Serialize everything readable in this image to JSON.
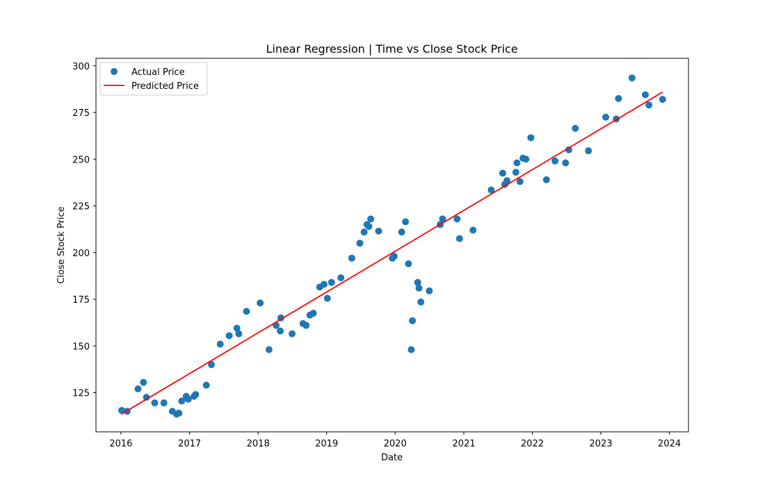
{
  "chart_data": {
    "type": "scatter",
    "title": "Linear Regression | Time vs Close Stock Price",
    "xlabel": "Date",
    "ylabel": "Close Stock Price",
    "xlim": [
      "2015-08-21",
      "2024-04-12"
    ],
    "ylim": [
      104,
      304
    ],
    "x_ticks": [
      "2016",
      "2017",
      "2018",
      "2019",
      "2020",
      "2021",
      "2022",
      "2023",
      "2024"
    ],
    "y_ticks": [
      125,
      150,
      175,
      200,
      225,
      250,
      275,
      300
    ],
    "grid": false,
    "legend_position": "top-left",
    "series": [
      {
        "name": "Actual Price",
        "kind": "scatter",
        "color": "#1f77b4",
        "points": [
          [
            "2016-01-05",
            115.5
          ],
          [
            "2016-02-03",
            115
          ],
          [
            "2016-04-01",
            127
          ],
          [
            "2016-04-30",
            130.5
          ],
          [
            "2016-05-16",
            122.5
          ],
          [
            "2016-06-29",
            119.5
          ],
          [
            "2016-08-17",
            119.5
          ],
          [
            "2016-10-01",
            115
          ],
          [
            "2016-10-24",
            113.5
          ],
          [
            "2016-11-05",
            114
          ],
          [
            "2016-11-20",
            120.5
          ],
          [
            "2016-12-14",
            123
          ],
          [
            "2016-12-25",
            121.5
          ],
          [
            "2017-01-24",
            123
          ],
          [
            "2017-02-02",
            124
          ],
          [
            "2017-03-31",
            129
          ],
          [
            "2017-04-27",
            140
          ],
          [
            "2017-06-13",
            151
          ],
          [
            "2017-07-31",
            155.5
          ],
          [
            "2017-09-10",
            159.5
          ],
          [
            "2017-09-20",
            156.5
          ],
          [
            "2017-10-31",
            168.5
          ],
          [
            "2018-01-12",
            173
          ],
          [
            "2018-02-28",
            148
          ],
          [
            "2018-04-07",
            161
          ],
          [
            "2018-04-29",
            158
          ],
          [
            "2018-05-02",
            165
          ],
          [
            "2018-07-01",
            156.5
          ],
          [
            "2018-08-28",
            162
          ],
          [
            "2018-09-14",
            161
          ],
          [
            "2018-10-04",
            166.5
          ],
          [
            "2018-10-22",
            167.5
          ],
          [
            "2018-11-25",
            181.5
          ],
          [
            "2018-12-18",
            183
          ],
          [
            "2019-01-05",
            175.5
          ],
          [
            "2019-01-27",
            184
          ],
          [
            "2019-03-18",
            186.5
          ],
          [
            "2019-05-15",
            197
          ],
          [
            "2019-06-27",
            205
          ],
          [
            "2019-07-20",
            211
          ],
          [
            "2019-08-04",
            215
          ],
          [
            "2019-08-14",
            214
          ],
          [
            "2019-08-24",
            218
          ],
          [
            "2019-10-05",
            211.5
          ],
          [
            "2019-12-17",
            197
          ],
          [
            "2019-12-27",
            198
          ],
          [
            "2020-02-05",
            211
          ],
          [
            "2020-02-25",
            216.5
          ],
          [
            "2020-03-12",
            194
          ],
          [
            "2020-03-27",
            148
          ],
          [
            "2020-04-02",
            163.5
          ],
          [
            "2020-04-30",
            184
          ],
          [
            "2020-05-07",
            181
          ],
          [
            "2020-05-17",
            173.5
          ],
          [
            "2020-07-01",
            179.5
          ],
          [
            "2020-08-28",
            215
          ],
          [
            "2020-09-10",
            218
          ],
          [
            "2020-11-26",
            218
          ],
          [
            "2020-12-09",
            207.5
          ],
          [
            "2021-02-19",
            212
          ],
          [
            "2021-05-27",
            233.5
          ],
          [
            "2021-07-27",
            242.5
          ],
          [
            "2021-08-07",
            236.5
          ],
          [
            "2021-08-19",
            238.5
          ],
          [
            "2021-10-05",
            243
          ],
          [
            "2021-10-11",
            248
          ],
          [
            "2021-10-27",
            238
          ],
          [
            "2021-11-12",
            250.5
          ],
          [
            "2021-11-28",
            250
          ],
          [
            "2021-12-24",
            261.5
          ],
          [
            "2022-03-17",
            239
          ],
          [
            "2022-05-02",
            249
          ],
          [
            "2022-06-27",
            248
          ],
          [
            "2022-07-14",
            255
          ],
          [
            "2022-08-18",
            266.5
          ],
          [
            "2022-10-27",
            254.5
          ],
          [
            "2023-01-27",
            272.5
          ],
          [
            "2023-03-24",
            271.5
          ],
          [
            "2023-04-05",
            282.5
          ],
          [
            "2023-06-16",
            293.5
          ],
          [
            "2023-08-26",
            284.5
          ],
          [
            "2023-09-14",
            279
          ],
          [
            "2023-11-26",
            282
          ]
        ]
      },
      {
        "name": "Predicted Price",
        "kind": "line",
        "color": "#ff0000",
        "points": [
          [
            "2016-01-04",
            113.5
          ],
          [
            "2023-11-26",
            285.9
          ]
        ]
      }
    ]
  }
}
